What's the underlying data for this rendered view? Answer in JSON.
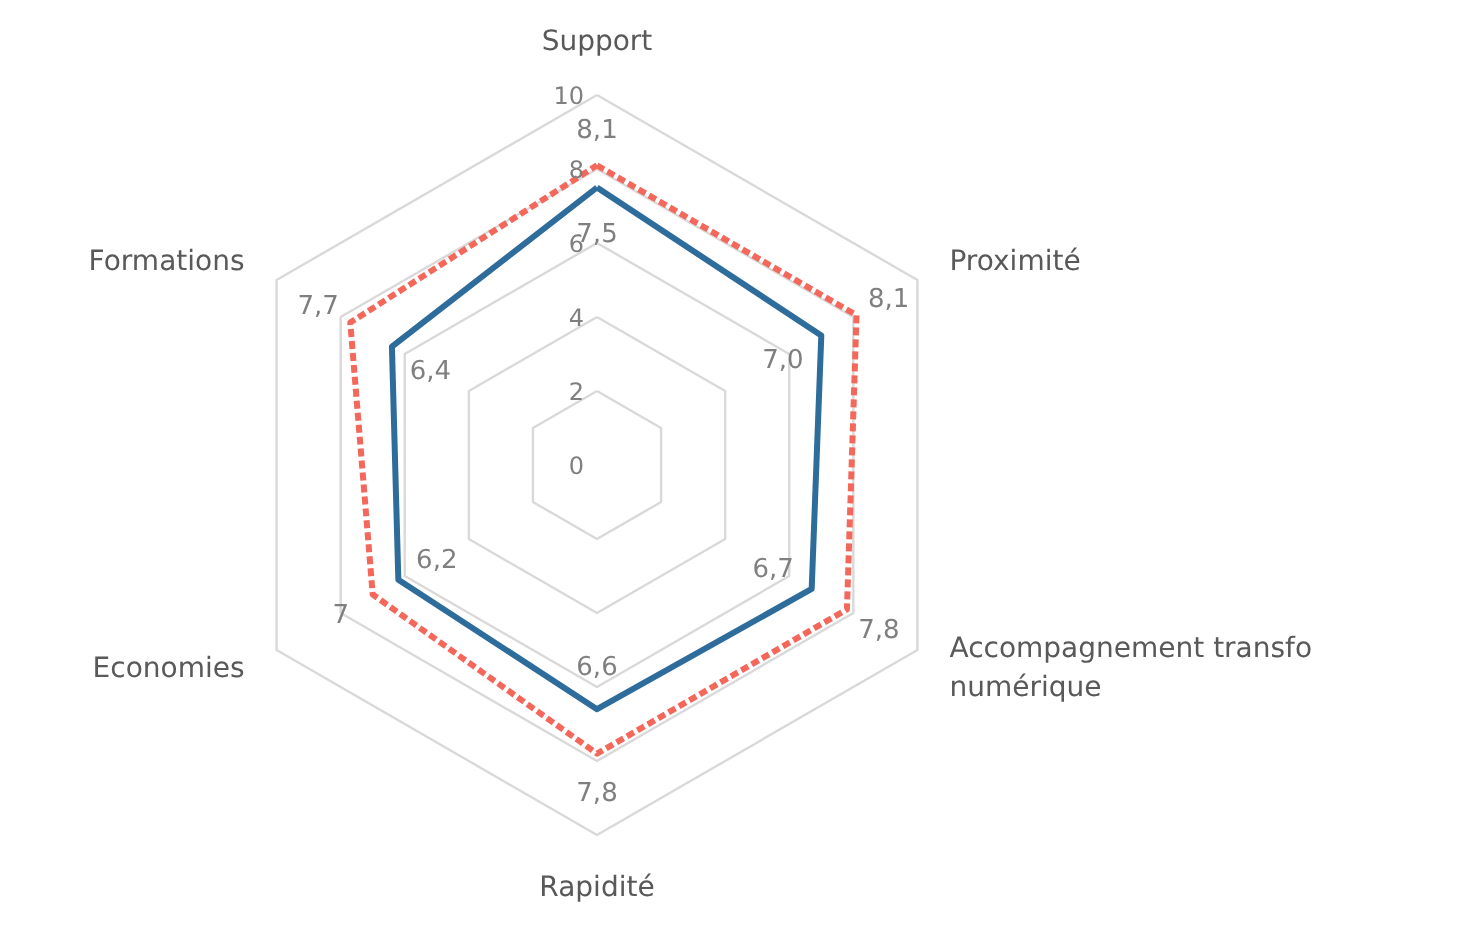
{
  "chart_data": {
    "type": "radar",
    "categories": [
      "Support",
      "Proximité",
      "Accompagnement transfo numérique",
      "Rapidité",
      "Economies",
      "Formations"
    ],
    "ylim": [
      0,
      10
    ],
    "yticks": [
      0,
      2,
      4,
      6,
      8,
      10
    ],
    "grid": true,
    "series": [
      {
        "color": "#2e6c9c",
        "line_style": "solid",
        "values": [
          7.5,
          7.0,
          6.7,
          6.6,
          6.2,
          6.4
        ],
        "value_labels": [
          "7,5",
          "7,0",
          "6,7",
          "6,6",
          "6,2",
          "6,4"
        ]
      },
      {
        "color": "#f4675b",
        "line_style": "dashed",
        "values": [
          8.1,
          8.1,
          7.8,
          7.8,
          7,
          7.7
        ],
        "value_labels": [
          "8,1",
          "8,1",
          "7,8",
          "7,8",
          "7",
          "7,7"
        ]
      }
    ]
  }
}
